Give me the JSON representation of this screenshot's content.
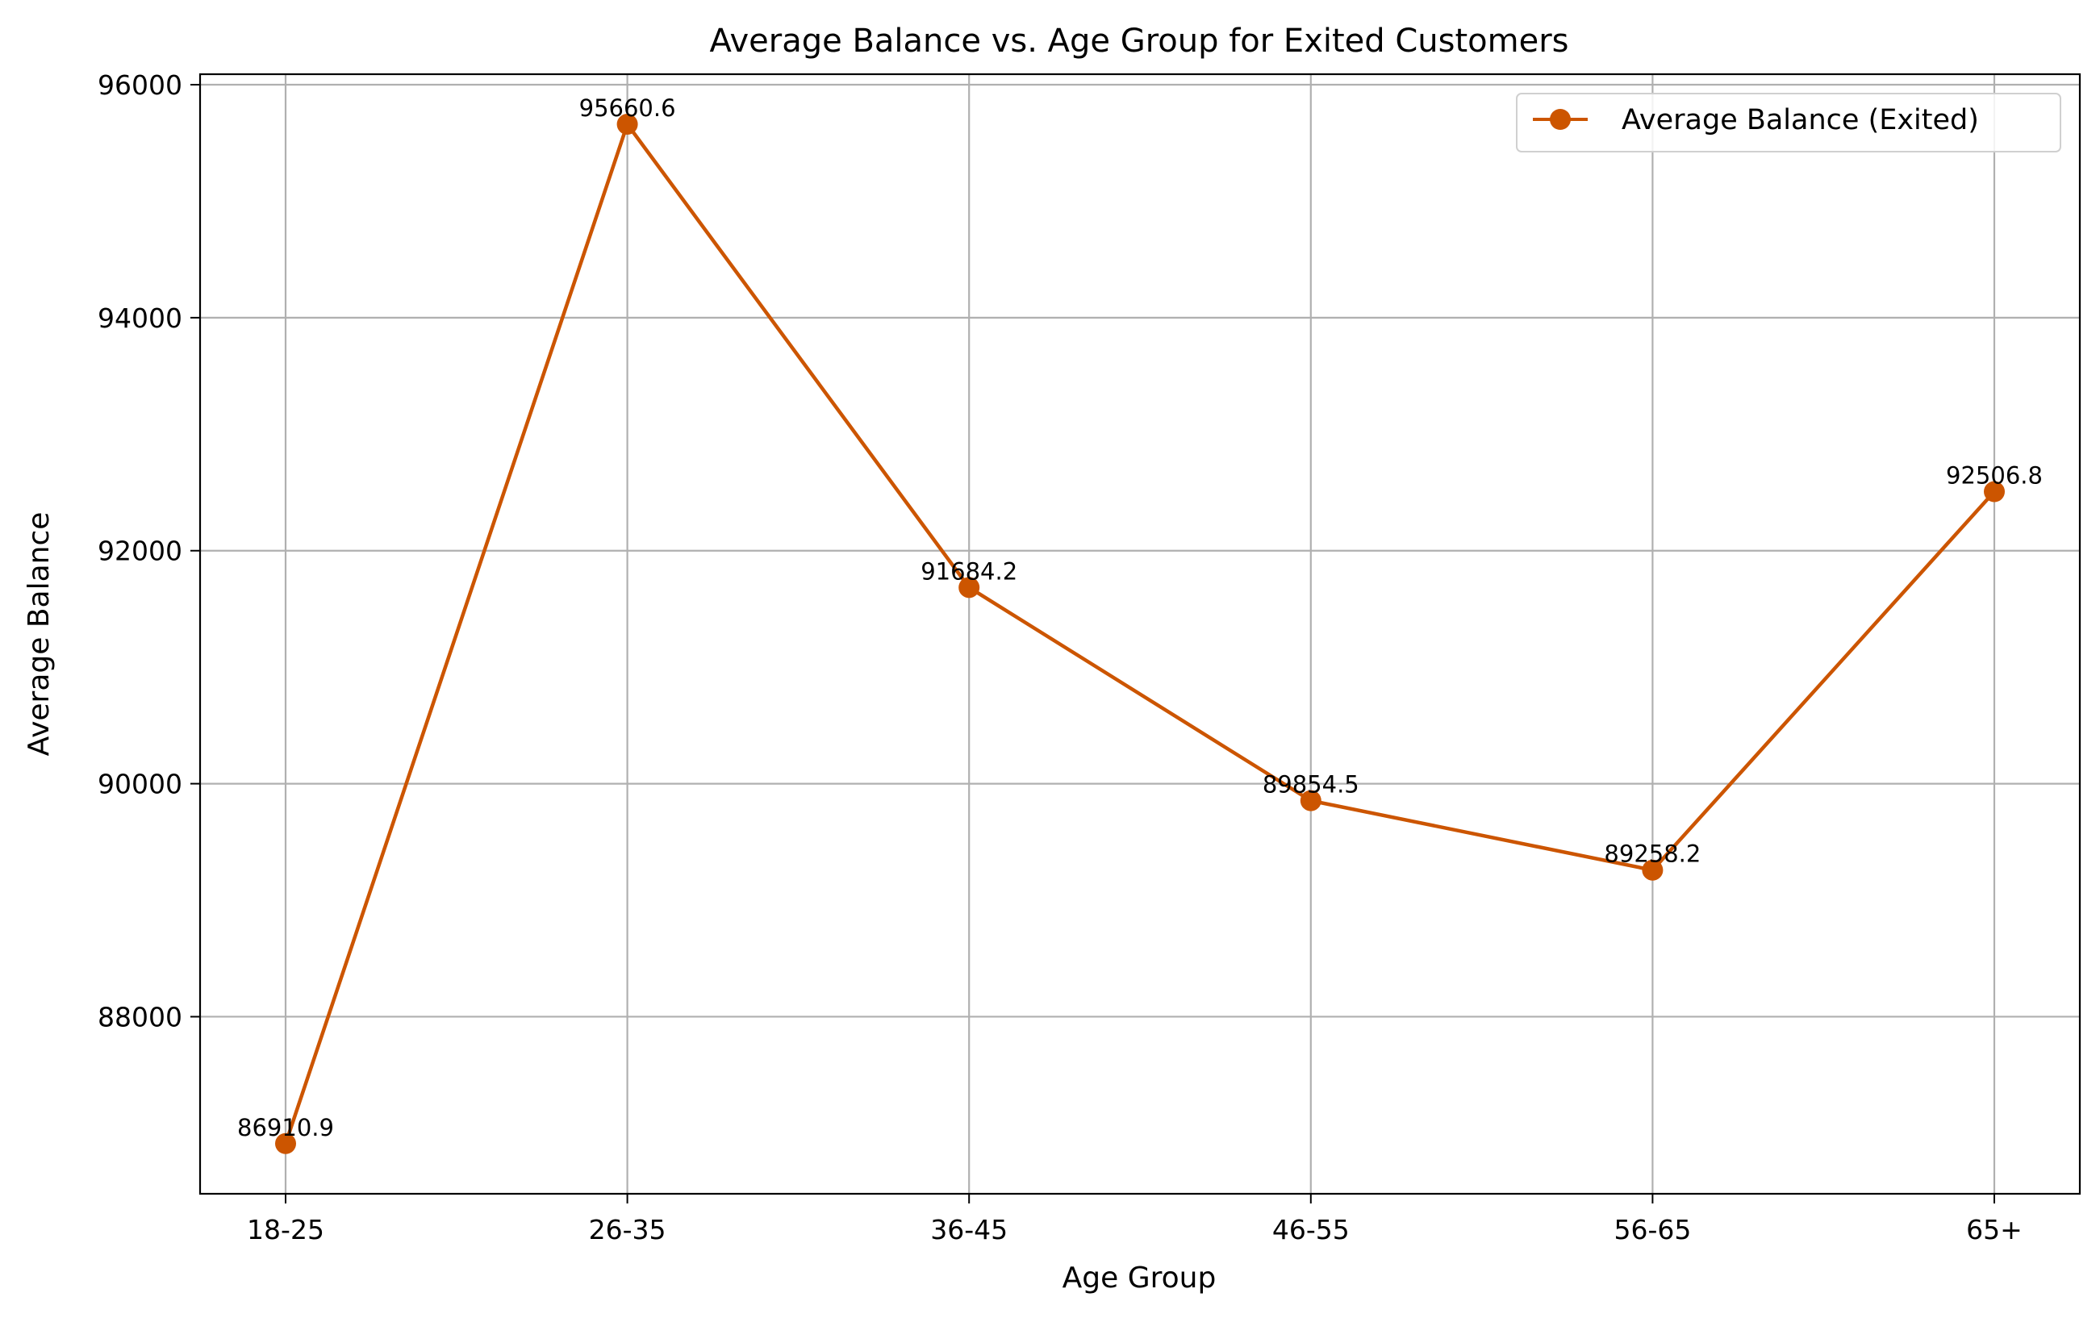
{
  "chart_data": {
    "type": "line",
    "title": "Average Balance vs. Age Group for Exited Customers",
    "xlabel": "Age Group",
    "ylabel": "Average Balance",
    "categories": [
      "18-25",
      "26-35",
      "36-45",
      "46-55",
      "56-65",
      "65+"
    ],
    "series": [
      {
        "name": "Average Balance (Exited)",
        "values": [
          86910.9,
          95660.6,
          91684.2,
          89854.5,
          89258.2,
          92506.8
        ],
        "labels": [
          "86910.9",
          "95660.6",
          "91684.2",
          "89854.5",
          "89258.2",
          "92506.8"
        ],
        "color": "#cc5500"
      }
    ],
    "ylim": [
      86480,
      96090
    ],
    "yticks": [
      88000,
      90000,
      92000,
      94000,
      96000
    ],
    "ytick_labels": [
      "88000",
      "90000",
      "92000",
      "94000",
      "96000"
    ],
    "grid": true,
    "legend_position": "top-right",
    "marker": "circle"
  }
}
